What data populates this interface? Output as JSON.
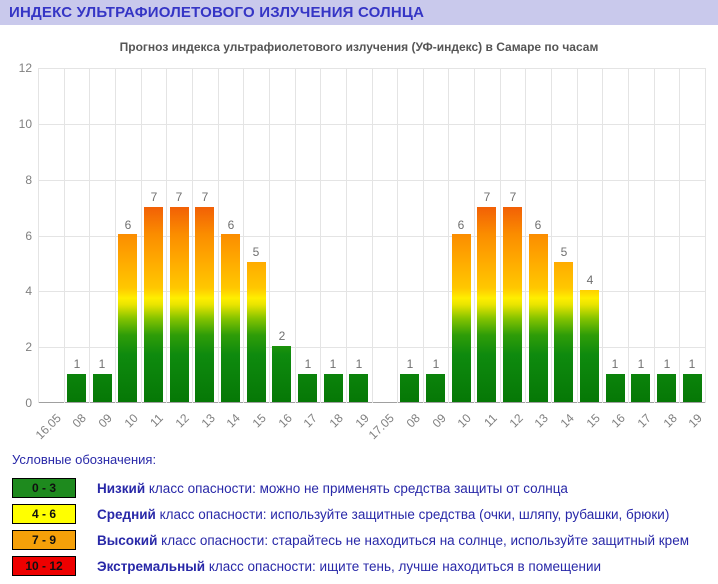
{
  "header": {
    "title": "ИНДЕКС УЛЬТРАФИОЛЕТОВОГО ИЗЛУЧЕНИЯ СОЛНЦА"
  },
  "chart_data": {
    "type": "bar",
    "title": "Прогноз индекса ультрафиолетового излучения (УФ-индекс) в Самаре по часам",
    "categories": [
      "16.05",
      "08",
      "09",
      "10",
      "11",
      "12",
      "13",
      "14",
      "15",
      "16",
      "17",
      "18",
      "19",
      "17.05",
      "08",
      "09",
      "10",
      "11",
      "12",
      "13",
      "14",
      "15",
      "16",
      "17",
      "18",
      "19"
    ],
    "values": [
      null,
      1,
      1,
      6,
      7,
      7,
      7,
      6,
      5,
      2,
      1,
      1,
      1,
      null,
      1,
      1,
      6,
      7,
      7,
      6,
      5,
      4,
      1,
      1,
      1,
      1
    ],
    "xlabel": "",
    "ylabel": "",
    "ylim": [
      0,
      12
    ],
    "yticks": [
      0,
      2,
      4,
      6,
      8,
      10,
      12
    ],
    "grid": true,
    "legend_position": "none",
    "bar_color_scale": {
      "0-3": "#0e8a0e",
      "4-6": "#ffee00",
      "7-9": "#fb8d00",
      "10-12": "#dd0000"
    }
  },
  "legend": {
    "heading": "Условные обозначения:",
    "items": [
      {
        "range": "0 - 3",
        "color": "#1e8a1e",
        "term": "Низкий",
        "text": " класс опасности: можно не применять средства защиты от солнца"
      },
      {
        "range": "4 - 6",
        "color": "#ffff00",
        "term": "Средний",
        "text": " класс опасности: используйте защитные средства (очки, шляпу, рубашки, брюки)"
      },
      {
        "range": "7 - 9",
        "color": "#f5a009",
        "term": "Высокий",
        "text": " класс опасности: старайтесь не находиться на солнце, используйте защитный крем"
      },
      {
        "range": "10 - 12",
        "color": "#ee0000",
        "term": "Экстремальный",
        "text": " класс опасности: ищите тень, лучше находиться в помещении"
      }
    ]
  }
}
